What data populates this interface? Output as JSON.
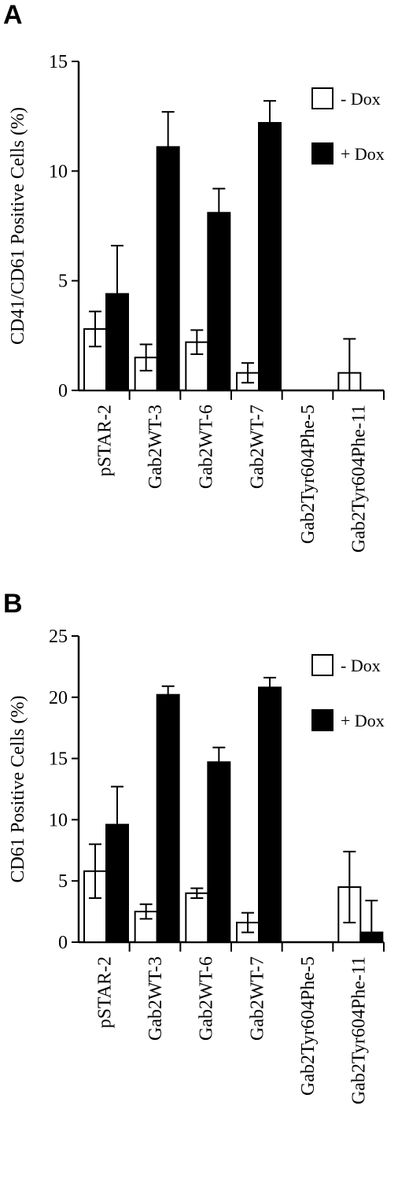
{
  "chart_data": [
    {
      "type": "bar",
      "panel_label": "A",
      "ylabel": "CD41/CD61 Positive Cells (%)",
      "ylim": [
        0,
        15
      ],
      "yticks": [
        0,
        5,
        10,
        15
      ],
      "categories": [
        "pSTAR-2",
        "Gab2WT-3",
        "Gab2WT-6",
        "Gab2WT-7",
        "Gab2Tyr604Phe-5",
        "Gab2Tyr604Phe-11"
      ],
      "series": [
        {
          "name": "- Dox",
          "fill": "#ffffff",
          "values": [
            2.8,
            1.5,
            2.2,
            0.8,
            0.0,
            0.8
          ],
          "errors": [
            0.8,
            0.6,
            0.55,
            0.45,
            0.0,
            1.55
          ]
        },
        {
          "name": "+ Dox",
          "fill": "#000000",
          "values": [
            4.4,
            11.1,
            8.1,
            12.2,
            0.0,
            0.0
          ],
          "errors": [
            2.2,
            1.6,
            1.1,
            1.0,
            0.0,
            0.0
          ]
        }
      ],
      "legend_position": "top-right",
      "grid": false
    },
    {
      "type": "bar",
      "panel_label": "B",
      "ylabel": "CD61 Positive Cells (%)",
      "ylim": [
        0,
        25
      ],
      "yticks": [
        0,
        5,
        10,
        15,
        20,
        25
      ],
      "categories": [
        "pSTAR-2",
        "Gab2WT-3",
        "Gab2WT-6",
        "Gab2WT-7",
        "Gab2Tyr604Phe-5",
        "Gab2Tyr604Phe-11"
      ],
      "series": [
        {
          "name": "- Dox",
          "fill": "#ffffff",
          "values": [
            5.8,
            2.5,
            4.0,
            1.6,
            0.0,
            4.5
          ],
          "errors": [
            2.2,
            0.6,
            0.4,
            0.8,
            0.0,
            2.9
          ]
        },
        {
          "name": "+ Dox",
          "fill": "#000000",
          "values": [
            9.6,
            20.2,
            14.7,
            20.8,
            0.0,
            0.8
          ],
          "errors": [
            3.1,
            0.7,
            1.2,
            0.8,
            0.0,
            2.6
          ]
        }
      ],
      "legend_position": "top-right",
      "grid": false
    }
  ]
}
